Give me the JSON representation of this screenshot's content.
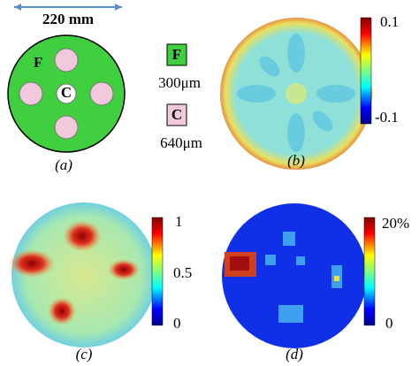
{
  "panel_a": {
    "caption": "(a)",
    "scale": "220 mm",
    "field_label": "F",
    "core_label": "C"
  },
  "legend": [
    {
      "symbol": "F",
      "size": "300μm"
    },
    {
      "symbol": "C",
      "size": "640μm"
    }
  ],
  "panel_b": {
    "caption": "(b)",
    "colorbar": [
      "0.1",
      "-0.1"
    ]
  },
  "panel_c": {
    "caption": "(c)",
    "colorbar": [
      "1",
      "0.5",
      "0"
    ]
  },
  "panel_d": {
    "caption": "(d)",
    "colorbar": [
      "20%",
      "0"
    ]
  }
}
